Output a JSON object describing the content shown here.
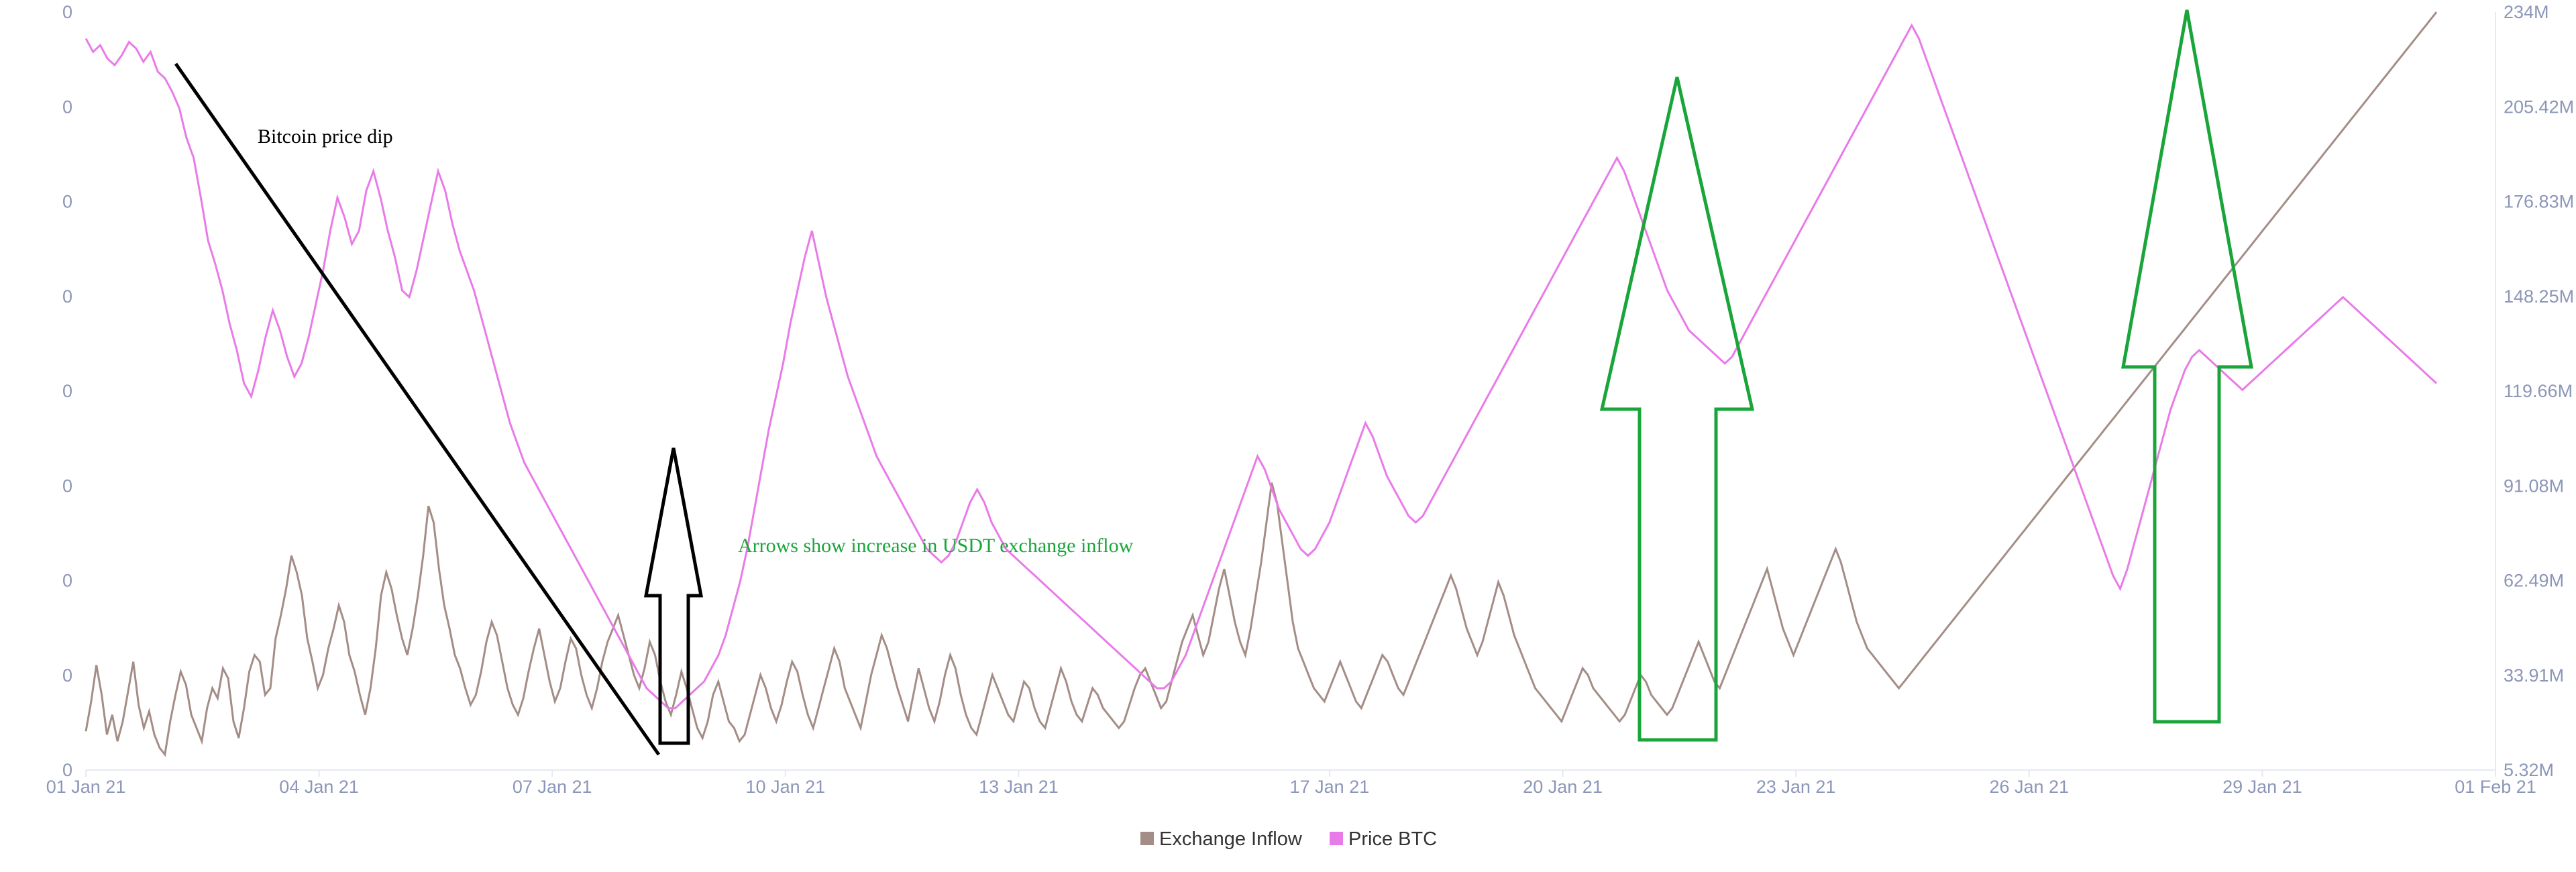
{
  "chart_data": {
    "type": "line",
    "title": "",
    "xlabel": "",
    "ylabel": "",
    "x_range": [
      "2021-01-01",
      "2021-02-01"
    ],
    "x_ticks": [
      "01 Jan 21",
      "04 Jan 21",
      "07 Jan 21",
      "10 Jan 21",
      "13 Jan 21",
      "17 Jan 21",
      "20 Jan 21",
      "23 Jan 21",
      "26 Jan 21",
      "29 Jan 21",
      "01 Feb 21"
    ],
    "y_left_ticks": [
      "0",
      "0",
      "0",
      "0",
      "0",
      "0",
      "0",
      "0",
      "0"
    ],
    "y_right_ticks": [
      "5.32M",
      "33.91M",
      "62.49M",
      "91.08M",
      "119.66M",
      "148.25M",
      "176.83M",
      "205.42M",
      "234M"
    ],
    "y_right_range": [
      5.32,
      234
    ],
    "grid": false,
    "legend_position": "bottom-center",
    "legend": [
      "Exchange Inflow",
      "Price BTC"
    ],
    "colors": {
      "exchange_inflow": "#a48d86",
      "price_btc": "#e97be9",
      "annotation_black": "#000000",
      "annotation_green": "#1aa53a"
    },
    "series": [
      {
        "name": "Exchange Inflow",
        "axis": "right",
        "unit": "M",
        "values": [
          17,
          26,
          37,
          28,
          16,
          22,
          14,
          20,
          29,
          38,
          25,
          18,
          23,
          16,
          12,
          10,
          20,
          28,
          35,
          31,
          22,
          18,
          14,
          24,
          30,
          27,
          36,
          33,
          20,
          15,
          24,
          35,
          40,
          38,
          28,
          30,
          45,
          52,
          60,
          70,
          65,
          58,
          45,
          38,
          30,
          34,
          42,
          48,
          55,
          50,
          40,
          35,
          28,
          22,
          30,
          42,
          58,
          65,
          60,
          52,
          45,
          40,
          48,
          58,
          70,
          85,
          80,
          66,
          55,
          48,
          40,
          36,
          30,
          25,
          28,
          35,
          44,
          50,
          46,
          38,
          30,
          25,
          22,
          27,
          35,
          42,
          48,
          40,
          32,
          26,
          30,
          38,
          45,
          42,
          34,
          28,
          24,
          30,
          38,
          44,
          48,
          52,
          46,
          40,
          34,
          30,
          36,
          44,
          40,
          32,
          26,
          22,
          28,
          35,
          30,
          24,
          18,
          15,
          20,
          28,
          32,
          26,
          20,
          18,
          14,
          16,
          22,
          28,
          34,
          30,
          24,
          20,
          25,
          32,
          38,
          35,
          28,
          22,
          18,
          24,
          30,
          36,
          42,
          38,
          30,
          26,
          22,
          18,
          26,
          34,
          40,
          46,
          42,
          36,
          30,
          25,
          20,
          28,
          36,
          30,
          24,
          20,
          26,
          34,
          40,
          36,
          28,
          22,
          18,
          16,
          22,
          28,
          34,
          30,
          26,
          22,
          20,
          26,
          32,
          30,
          24,
          20,
          18,
          24,
          30,
          36,
          32,
          26,
          22,
          20,
          25,
          30,
          28,
          24,
          22,
          20,
          18,
          20,
          25,
          30,
          34,
          36,
          32,
          28,
          24,
          26,
          32,
          38,
          44,
          48,
          52,
          46,
          40,
          44,
          52,
          60,
          66,
          58,
          50,
          44,
          40,
          48,
          58,
          68,
          80,
          92,
          86,
          74,
          62,
          50,
          42,
          38,
          34,
          30,
          28,
          26,
          30,
          34,
          38,
          34,
          30,
          26,
          24,
          28,
          32,
          36,
          40,
          38,
          34,
          30,
          28,
          32,
          36,
          40,
          44,
          48,
          52,
          56,
          60,
          64,
          60,
          54,
          48,
          44,
          40,
          44,
          50,
          56,
          62,
          58,
          52,
          46,
          42,
          38,
          34,
          30,
          28,
          26,
          24,
          22,
          20,
          24,
          28,
          32,
          36,
          34,
          30,
          28,
          26,
          24,
          22,
          20,
          22,
          26,
          30,
          34,
          32,
          28,
          26,
          24,
          22,
          24,
          28,
          32,
          36,
          40,
          44,
          40,
          36,
          32,
          30,
          34,
          38,
          42,
          46,
          50,
          54,
          58,
          62,
          66,
          60,
          54,
          48,
          44,
          40,
          44,
          48,
          52,
          56,
          60,
          64,
          68,
          72,
          68,
          62,
          56,
          50,
          46,
          42,
          40,
          38,
          36,
          34,
          32,
          30,
          32,
          34,
          36,
          38,
          40,
          42,
          44,
          46,
          48,
          50,
          52,
          54,
          56,
          58,
          60,
          62,
          64,
          66,
          68,
          70,
          72,
          74,
          76,
          78,
          80,
          82,
          84,
          86,
          88,
          90,
          92,
          94,
          96,
          98,
          100,
          102,
          104,
          106,
          108,
          110,
          112,
          114,
          116,
          118,
          120,
          122,
          124,
          126,
          128,
          130,
          132,
          134,
          136,
          138,
          140,
          142,
          144,
          146,
          148,
          150,
          152,
          154,
          156,
          158,
          160,
          162,
          164,
          166,
          168,
          170,
          172,
          174,
          176,
          178,
          180,
          182,
          184,
          186,
          188,
          190,
          192,
          194,
          196,
          198,
          200,
          202,
          204,
          206,
          208,
          210,
          212,
          214,
          216,
          218,
          220,
          222,
          224,
          226,
          228,
          230,
          232,
          234
        ]
      },
      {
        "name": "Price BTC",
        "axis": "right",
        "unit": "M",
        "values": [
          226,
          222,
          224,
          220,
          218,
          221,
          225,
          223,
          219,
          222,
          216,
          214,
          210,
          205,
          196,
          190,
          178,
          165,
          158,
          150,
          140,
          132,
          122,
          118,
          126,
          136,
          144,
          138,
          130,
          124,
          128,
          136,
          146,
          156,
          168,
          178,
          172,
          164,
          168,
          180,
          186,
          178,
          168,
          160,
          150,
          148,
          156,
          166,
          176,
          186,
          180,
          170,
          162,
          156,
          150,
          142,
          134,
          126,
          118,
          110,
          104,
          98,
          94,
          90,
          86,
          82,
          78,
          74,
          70,
          66,
          62,
          58,
          54,
          50,
          46,
          42,
          38,
          34,
          30,
          28,
          26,
          24,
          24,
          26,
          28,
          30,
          32,
          36,
          40,
          46,
          54,
          62,
          72,
          84,
          96,
          108,
          118,
          128,
          140,
          150,
          160,
          168,
          158,
          148,
          140,
          132,
          124,
          118,
          112,
          106,
          100,
          96,
          92,
          88,
          84,
          80,
          76,
          72,
          70,
          68,
          70,
          74,
          80,
          86,
          90,
          86,
          80,
          76,
          72,
          70,
          68,
          66,
          64,
          62,
          60,
          58,
          56,
          54,
          52,
          50,
          48,
          46,
          44,
          42,
          40,
          38,
          36,
          34,
          32,
          30,
          30,
          32,
          36,
          40,
          46,
          52,
          58,
          64,
          70,
          76,
          82,
          88,
          94,
          100,
          96,
          90,
          84,
          80,
          76,
          72,
          70,
          72,
          76,
          80,
          86,
          92,
          98,
          104,
          110,
          106,
          100,
          94,
          90,
          86,
          82,
          80,
          82,
          86,
          90,
          94,
          98,
          102,
          106,
          110,
          114,
          118,
          122,
          126,
          130,
          134,
          138,
          142,
          146,
          150,
          154,
          158,
          162,
          166,
          170,
          174,
          178,
          182,
          186,
          190,
          186,
          180,
          174,
          168,
          162,
          156,
          150,
          146,
          142,
          138,
          136,
          134,
          132,
          130,
          128,
          130,
          134,
          138,
          142,
          146,
          150,
          154,
          158,
          162,
          166,
          170,
          174,
          178,
          182,
          186,
          190,
          194,
          198,
          202,
          206,
          210,
          214,
          218,
          222,
          226,
          230,
          226,
          220,
          214,
          208,
          202,
          196,
          190,
          184,
          178,
          172,
          166,
          160,
          154,
          148,
          142,
          136,
          130,
          124,
          118,
          112,
          106,
          100,
          94,
          88,
          82,
          76,
          70,
          64,
          60,
          66,
          74,
          82,
          90,
          98,
          106,
          114,
          120,
          126,
          130,
          132,
          130,
          128,
          126,
          124,
          122,
          120,
          122,
          124,
          126,
          128,
          130,
          132,
          134,
          136,
          138,
          140,
          142,
          144,
          146,
          148,
          146,
          144,
          142,
          140,
          138,
          136,
          134,
          132,
          130,
          128,
          126,
          124,
          122
        ]
      }
    ]
  },
  "annotations": {
    "price_dip": "Bitcoin price dip",
    "arrows": "Arrows show increase in USDT exchange inflow"
  }
}
